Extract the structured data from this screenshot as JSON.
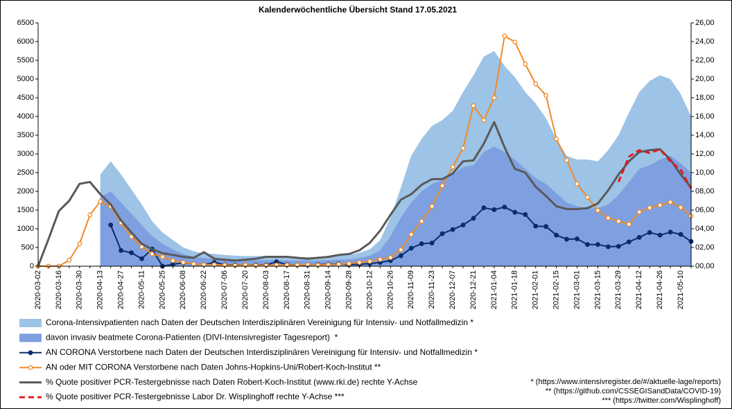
{
  "chart_data": {
    "type": "line",
    "title": "Kalenderwöchentliche Übersicht Stand 17.05.2021",
    "categories": [
      "2020-03-02",
      null,
      "2020-03-16",
      null,
      "2020-03-30",
      null,
      "2020-04-13",
      null,
      "2020-04-27",
      null,
      "2020-05-11",
      null,
      "2020-05-25",
      null,
      "2020-06-08",
      null,
      "2020-06-22",
      null,
      "2020-07-06",
      null,
      "2020-07-20",
      null,
      "2020-08-03",
      null,
      "2020-08-17",
      null,
      "2020-08-31",
      null,
      "2020-09-14",
      null,
      "2020-09-28",
      null,
      "2020-10-12",
      null,
      "2020-10-26",
      null,
      "2020-11-09",
      null,
      "2020-11-23",
      null,
      "2020-12-07",
      null,
      "2020-12-21",
      null,
      "2021-01-04",
      null,
      "2021-01-18",
      null,
      "2021-02-01",
      null,
      "2021-02-15",
      null,
      "2021-03-01",
      null,
      "2021-03-15",
      null,
      "2021-03-29",
      null,
      "2021-04-12",
      null,
      "2021-04-26",
      null,
      "2021-05-10",
      null
    ],
    "ylim": [
      0,
      6500
    ],
    "yticks": [
      0,
      500,
      1000,
      1500,
      2000,
      2500,
      3000,
      3500,
      4000,
      4500,
      5000,
      5500,
      6000,
      6500
    ],
    "y2lim": [
      0,
      26
    ],
    "y2ticks": [
      {
        "value": 0,
        "label": "00,00"
      },
      {
        "value": 2,
        "label": "02,00"
      },
      {
        "value": 4,
        "label": "04,00"
      },
      {
        "value": 6,
        "label": "06,00"
      },
      {
        "value": 8,
        "label": "08,00"
      },
      {
        "value": 10,
        "label": "10,00"
      },
      {
        "value": 12,
        "label": "12,00"
      },
      {
        "value": 14,
        "label": "14,00"
      },
      {
        "value": 16,
        "label": "16,00"
      },
      {
        "value": 18,
        "label": "18,00"
      },
      {
        "value": 20,
        "label": "20,00"
      },
      {
        "value": 22,
        "label": "22,00"
      },
      {
        "value": 24,
        "label": "24,00"
      },
      {
        "value": 26,
        "label": "26,00"
      }
    ],
    "grid": false,
    "legend": "bottom",
    "series": [
      {
        "name": "Corona-Intensivpatienten nach Daten der Deutschen Interdisziplinären Vereinigung für Intensiv- und Notfallmedizin *",
        "type": "area",
        "color": "#9dc3e6",
        "values": [
          null,
          null,
          null,
          null,
          null,
          null,
          2450,
          2800,
          2450,
          2050,
          1650,
          1200,
          900,
          700,
          500,
          400,
          340,
          330,
          300,
          280,
          270,
          270,
          280,
          260,
          240,
          240,
          240,
          240,
          260,
          280,
          300,
          360,
          450,
          700,
          1300,
          2100,
          2950,
          3400,
          3750,
          3900,
          4150,
          4650,
          5100,
          5600,
          5750,
          5350,
          5050,
          4650,
          4350,
          3950,
          3400,
          2950,
          2850,
          2850,
          2800,
          3100,
          3500,
          4100,
          4650,
          4950,
          5100,
          5000,
          4600,
          4000
        ]
      },
      {
        "name": "davon invasiv beatmete Corona-Patienten (DIVI-Intensivregister Tagesreport)  *",
        "type": "area",
        "color": "#7fa0e0",
        "values": [
          null,
          null,
          null,
          null,
          null,
          null,
          1850,
          2000,
          1700,
          1400,
          1100,
          800,
          600,
          450,
          330,
          250,
          220,
          200,
          180,
          170,
          160,
          160,
          160,
          160,
          150,
          150,
          150,
          150,
          160,
          170,
          180,
          220,
          280,
          420,
          800,
          1300,
          1700,
          2000,
          2200,
          2300,
          2450,
          2650,
          2700,
          3050,
          3200,
          3050,
          2850,
          2600,
          2350,
          2200,
          1950,
          1700,
          1600,
          1550,
          1550,
          1650,
          1900,
          2250,
          2600,
          2700,
          2850,
          2950,
          2750,
          2500
        ]
      },
      {
        "name": "AN CORONA Verstorbene nach Daten der Deutschen Interdisziplinären Vereinigung für Intensiv- und Notfallmedizin *",
        "type": "line",
        "color": "#0b2c6b",
        "markers": true,
        "values": [
          null,
          null,
          null,
          null,
          null,
          null,
          null,
          1100,
          420,
          360,
          200,
          460,
          0,
          50,
          90,
          60,
          40,
          100,
          40,
          30,
          30,
          30,
          30,
          120,
          40,
          30,
          30,
          40,
          50,
          60,
          40,
          50,
          70,
          100,
          150,
          280,
          480,
          600,
          620,
          870,
          980,
          1100,
          1280,
          1560,
          1510,
          1580,
          1440,
          1380,
          1070,
          1060,
          830,
          720,
          730,
          580,
          580,
          520,
          530,
          650,
          770,
          900,
          830,
          910,
          850,
          660
        ]
      },
      {
        "name": "AN oder MIT CORONA Verstorbene nach Daten Johns-Hopkins-Uni/Robert-Koch-Institut **",
        "type": "line",
        "color": "#f08a24",
        "markers": true,
        "values": [
          0,
          0,
          0,
          160,
          600,
          1370,
          1730,
          1600,
          1160,
          790,
          520,
          330,
          250,
          150,
          100,
          60,
          40,
          40,
          30,
          20,
          30,
          20,
          20,
          30,
          30,
          30,
          40,
          30,
          40,
          50,
          70,
          100,
          130,
          180,
          230,
          440,
          850,
          1200,
          1600,
          2150,
          2650,
          3150,
          4290,
          3900,
          4500,
          6150,
          5990,
          5400,
          4870,
          4560,
          3400,
          2830,
          2200,
          1840,
          1490,
          1290,
          1200,
          1120,
          1450,
          1560,
          1630,
          1710,
          1570,
          1340
        ]
      },
      {
        "name": "% Quote positiver PCR-Testergebnisse nach Daten Robert-Koch-Institut (www.rki.de) rechte Y-Achse",
        "type": "line",
        "color": "#595959",
        "axis": "y2",
        "values": [
          0,
          2.9,
          5.9,
          7.0,
          8.8,
          9.0,
          7.7,
          6.6,
          4.9,
          3.6,
          2.4,
          1.8,
          1.4,
          1.2,
          1.0,
          0.9,
          1.5,
          0.8,
          0.7,
          0.6,
          0.7,
          0.8,
          1.0,
          1.0,
          1.0,
          0.9,
          0.8,
          0.9,
          1.0,
          1.2,
          1.3,
          1.7,
          2.5,
          3.8,
          5.5,
          7.1,
          7.7,
          8.7,
          9.3,
          9.3,
          9.9,
          11.2,
          11.3,
          13.1,
          15.4,
          12.7,
          10.4,
          10.0,
          8.5,
          7.5,
          6.4,
          6.1,
          6.1,
          6.2,
          6.7,
          8.1,
          9.8,
          11.2,
          12.2,
          12.4,
          12.5,
          11.4,
          9.8,
          8.4
        ]
      },
      {
        "name": "% Quote positiver PCR-Testergebnisse Labor Dr. Wisplinghoff rechte Y-Achse ***",
        "type": "line",
        "color": "#e31a1a",
        "dashed": true,
        "axis": "y2",
        "values": [
          null,
          null,
          null,
          null,
          null,
          null,
          null,
          null,
          null,
          null,
          null,
          null,
          null,
          null,
          null,
          null,
          null,
          null,
          null,
          null,
          null,
          null,
          null,
          null,
          null,
          null,
          null,
          null,
          null,
          null,
          null,
          null,
          null,
          null,
          null,
          null,
          null,
          null,
          null,
          null,
          null,
          null,
          null,
          null,
          null,
          null,
          null,
          null,
          null,
          null,
          null,
          null,
          null,
          null,
          null,
          null,
          9.0,
          11.7,
          12.4,
          12.1,
          12.5,
          11.2,
          10.3,
          8.3
        ]
      }
    ],
    "notes": [
      "* (https://www.intensivregister.de/#/aktuelle-lage/reports)",
      "** (https://github.com/CSSEGISandData/COVID-19)",
      "*** (https://twitter.com/Wisplinghoff)"
    ]
  }
}
